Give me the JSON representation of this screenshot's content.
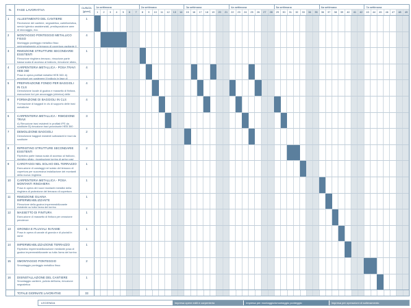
{
  "header": {
    "n": "N.",
    "fase": "FASE LAVORATIVA",
    "durata_line1": "DURATA",
    "durata_line2": "[giorni]"
  },
  "chart_data": {
    "type": "table",
    "subtype": "gantt-construction-schedule",
    "weeks": [
      "1a settimana",
      "2a settimana",
      "3a settimana",
      "4a settimana",
      "5a settimana",
      "6a settimana",
      "7a settimana"
    ],
    "days_per_week": 7,
    "total_days": 49,
    "weekend_note": "days 6 and 7 of each week are shaded non-working days",
    "tasks": [
      {
        "n": "1",
        "title": "ALLESTIMENTO DEL CANTIERE",
        "desc": "Recinzione del cantiere, segnaletica, cartellonistica, servizi igienico assistenziali, predisposizione aree di stoccaggio, ecc.",
        "durata": "1",
        "bars": [
          [
            1,
            1
          ]
        ]
      },
      {
        "n": "2",
        "title": "MONTAGGIO PONTEGGIO METALLICO FISSO",
        "desc": "Montaggio ponteggio metallico fisso perimetralmente al terrazzo di copertura ospitante il traliccio oggetto di adeguamento strutturale",
        "durata": "4",
        "bars": [
          [
            2,
            4
          ]
        ]
      },
      {
        "n": "3",
        "title": "RIMOZIONE STRUTTURE SECONDARIE ESISTENTI",
        "desc": "Rimozione ringhiera terrazzo, rimozione parte bassa scala di accesso al traliccio, rimozione sfiato, rimozione torrino di arrivo cavi coax",
        "durata": "1",
        "bars": [
          [
            8,
            1
          ]
        ]
      },
      {
        "n": "4",
        "title": "CARPENTERIA METALLICA - POSA TRAVI HEB 360",
        "desc": "Posa in opera profilati metallici HEB 360: A) provvisori per sostenere il traliccio in fase di sostituzione delle travi esistenti B) definitivi per sostegno del traliccio",
        "durata": "4",
        "bars": [
          [
            9,
            1
          ],
          [
            16,
            1
          ],
          [
            19,
            1
          ],
          [
            25,
            1
          ]
        ]
      },
      {
        "n": "5",
        "title": "PREPARAZIONE FONDO PER BAGGIOLI IN CLS",
        "desc": "Demolizione locale di guaina e massetto di finitura, esecuzione fori per ancoraggio (chimico) delle barre di armatura dei baggioli",
        "durata": "4",
        "bars": [
          [
            10,
            1
          ],
          [
            17,
            1
          ],
          [
            22,
            1
          ],
          [
            26,
            1
          ]
        ]
      },
      {
        "n": "6",
        "title": "FORMAZIONE DI BAGGIOLI IN CLS",
        "desc": "Formazione di baggioli in cls di supporto delle travi metalliche",
        "durata": "4",
        "bars": [
          [
            11,
            1
          ],
          [
            18,
            1
          ],
          [
            23,
            1
          ],
          [
            29,
            1
          ]
        ]
      },
      {
        "n": "6",
        "title": "CARPENTERIA METALLICA - RIMOZIONE TRAVI",
        "desc": "A) Rimozione travi esistenti in profilati IPE da sostituire B) rimozione travi provvisorie HEB 360",
        "durata": "3",
        "bars": [
          [
            12,
            1
          ],
          [
            24,
            1
          ],
          [
            30,
            1
          ]
        ]
      },
      {
        "n": "7",
        "title": "DEMOLIZIONE BAGGIOLI",
        "desc": "Demolizione baggioli esistenti sottostanti le travi da sostituire",
        "durata": "2",
        "bars": [
          [
            15,
            1
          ],
          [
            25,
            1
          ]
        ]
      },
      {
        "n": "8",
        "title": "RIPRISTINO STRUTTURE SECONDARIE ESISTENTI",
        "desc": "Ripristino parte bassa scala di accesso al traliccio, ripristino sfiato, ricostruzione torrino di arrivo cavi coax, spostamento canale",
        "durata": "2",
        "bars": [
          [
            31,
            2
          ]
        ]
      },
      {
        "n": "9",
        "title": "CAROTAGGI NEL SOLAIO DEL TERRAZZO",
        "desc": "Esecuzione di carotaggi nel solaio del terrazzo di copertura per successiva installazione dei montanti della nuova ringhiera",
        "durata": "1",
        "bars": [
          [
            33,
            1
          ]
        ]
      },
      {
        "n": "10",
        "title": "CARPENTERIA METALLICA - POSA MONTANTI RINGHIERA",
        "desc": "Posa in opera dei nuovi montanti metallici della ringhiera di protezione del terrazzo di copertura",
        "durata": "1",
        "bars": [
          [
            36,
            1
          ]
        ]
      },
      {
        "n": "11",
        "title": "RIMOZIONE GUAINA IMPERMEABILIZZANTE",
        "desc": "Rimozione della guaina impermeabilizzante esistente su tutta l'area del torrino",
        "durata": "1",
        "bars": [
          [
            37,
            1
          ]
        ]
      },
      {
        "n": "12",
        "title": "MASSETTO DI FINITURA",
        "desc": "Esecuzione di massetto di finitura per creazione pendenze",
        "durata": "1",
        "bars": [
          [
            38,
            1
          ]
        ]
      },
      {
        "n": "13",
        "title": "GRONDA E PLUVIALI IN RAME",
        "desc": "Posa in opera di canale di gronda e di pluviali in rame",
        "durata": "1",
        "bars": [
          [
            39,
            1
          ]
        ]
      },
      {
        "n": "14",
        "title": "IMPERMEABILIZZAZIONE TERRAZZO",
        "desc": "Ripristino impermeabilizzazione mediante posa di guaina impermeabilizzante su tutta l'area del torrino",
        "durata": "1",
        "bars": [
          [
            40,
            1
          ]
        ]
      },
      {
        "n": "15",
        "title": "SMONTAGGIO PONTEGGIO",
        "desc": "Smontaggio ponteggio metallico fisso",
        "durata": "2",
        "bars": [
          [
            43,
            2
          ]
        ]
      },
      {
        "n": "16",
        "title": "DISINSTALLAZIONE DEL CANTIERE",
        "desc": "Smontaggio cantiere, pulizia dell'area, rimozione segnaletica",
        "durata": "1",
        "bars": [
          [
            45,
            1
          ]
        ]
      }
    ],
    "total_row": {
      "label": "TOTALE GIORNATE LAVORATIVE",
      "value": "33"
    }
  },
  "legend": {
    "title": "LEGENDA",
    "items": [
      {
        "label": "Impresa opere edili e carpenteria",
        "color": "#7b97ab"
      },
      {
        "label": "Impresa per montaggio/smontaggio ponteggio",
        "color": "#688aa3"
      },
      {
        "label": "Impresa per operazioni di sollevamento",
        "color": "#7b97ab"
      }
    ]
  },
  "colors": {
    "bar": "#5b7f9d",
    "weekend": "#dee5ea",
    "grid": "#cfd9e1",
    "frame": "#92abbf",
    "title_text": "#274b6d",
    "desc_text": "#456888"
  }
}
